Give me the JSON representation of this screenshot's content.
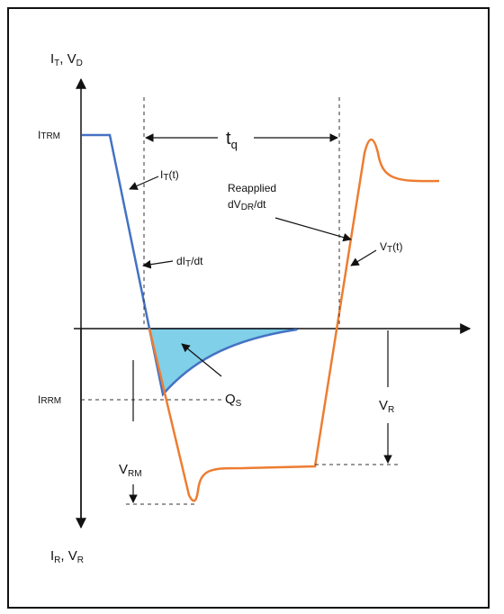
{
  "diagram": {
    "axes": {
      "top_label": {
        "main1": "I",
        "sub1": "T",
        "sep": ", V",
        "sub2": "D"
      },
      "bottom_label": {
        "main1": "I",
        "sub1": "R",
        "sep": ", V",
        "sub2": "R"
      }
    },
    "levels": {
      "itrm": {
        "main": "I",
        "sub": "TRM"
      },
      "irrm": {
        "main": "I",
        "sub": "RRM"
      }
    },
    "annotations": {
      "tq": {
        "main": "t",
        "sub": "q"
      },
      "it_t": {
        "pre": "I",
        "sub": "T",
        "post": "(t)"
      },
      "dit_dt": {
        "pre": "dI",
        "sub": "T",
        "post": "/dt"
      },
      "reapplied": "Reapplied",
      "dvdr_dt": {
        "pre": "dV",
        "sub": "DR",
        "post": "/dt"
      },
      "vt_t": {
        "pre": "V",
        "sub": "T",
        "post": "(t)"
      },
      "qs": {
        "main": "Q",
        "sub": "S"
      },
      "vr": {
        "main": "V",
        "sub": "R"
      },
      "vrm": {
        "main": "V",
        "sub": "RM"
      }
    },
    "colors": {
      "current": "#4472c4",
      "voltage": "#ed7d31",
      "charge_fill": "#7fd0e8",
      "axis": "#111111"
    }
  }
}
